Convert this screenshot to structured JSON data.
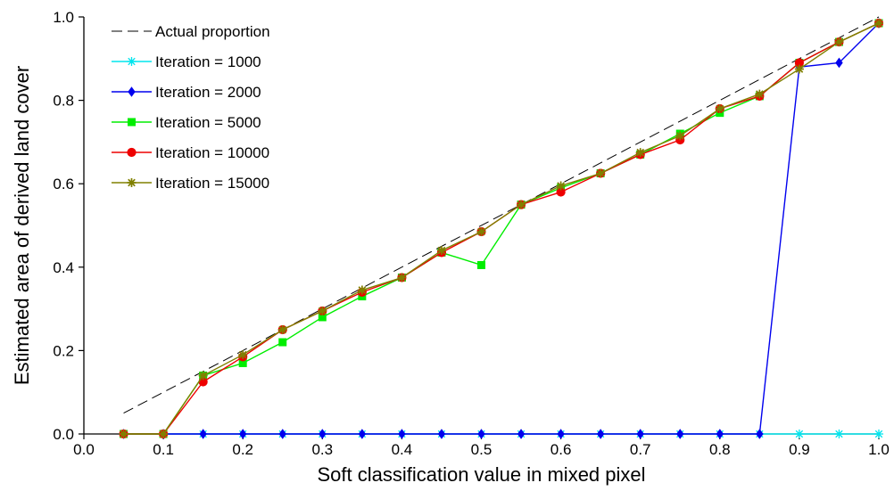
{
  "chart_data": {
    "type": "line",
    "xlabel": "Soft classification value in mixed pixel",
    "ylabel": "Estimated area of derived land cover",
    "xlim": [
      0.0,
      1.0
    ],
    "ylim": [
      0.0,
      1.0
    ],
    "x_ticks": [
      "0.0",
      "0.1",
      "0.2",
      "0.3",
      "0.4",
      "0.5",
      "0.6",
      "0.7",
      "0.8",
      "0.9",
      "1.0"
    ],
    "y_ticks": [
      "0.0",
      "0.2",
      "0.4",
      "0.6",
      "0.8",
      "1.0"
    ],
    "grid": false,
    "legend_position": "top-left",
    "series": [
      {
        "name": "Actual proportion",
        "color": "#000000",
        "style": "dashed",
        "marker": "none",
        "x": [
          0.05,
          1.0
        ],
        "y": [
          0.05,
          1.0
        ]
      },
      {
        "name": "Iteration = 1000",
        "color": "#00e5ee",
        "style": "solid",
        "marker": "star",
        "x": [
          0.05,
          0.1,
          0.15,
          0.2,
          0.25,
          0.3,
          0.35,
          0.4,
          0.45,
          0.5,
          0.55,
          0.6,
          0.65,
          0.7,
          0.75,
          0.8,
          0.85,
          0.9,
          0.95,
          1.0
        ],
        "y": [
          0,
          0,
          0,
          0,
          0,
          0,
          0,
          0,
          0,
          0,
          0,
          0,
          0,
          0,
          0,
          0,
          0,
          0,
          0,
          0
        ]
      },
      {
        "name": "Iteration = 2000",
        "color": "#0000ee",
        "style": "solid",
        "marker": "diamond",
        "x": [
          0.05,
          0.1,
          0.15,
          0.2,
          0.25,
          0.3,
          0.35,
          0.4,
          0.45,
          0.5,
          0.55,
          0.6,
          0.65,
          0.7,
          0.75,
          0.8,
          0.85,
          0.9,
          0.95,
          1.0
        ],
        "y": [
          0,
          0,
          0,
          0,
          0,
          0,
          0,
          0,
          0,
          0,
          0,
          0,
          0,
          0,
          0,
          0,
          0,
          0.88,
          0.89,
          0.985
        ]
      },
      {
        "name": "Iteration = 5000",
        "color": "#00ee00",
        "style": "solid",
        "marker": "square",
        "x": [
          0.05,
          0.1,
          0.15,
          0.2,
          0.25,
          0.3,
          0.35,
          0.4,
          0.45,
          0.5,
          0.55,
          0.6,
          0.65,
          0.7,
          0.75,
          0.8,
          0.85,
          0.9,
          0.95,
          1.0
        ],
        "y": [
          0,
          0,
          0.14,
          0.17,
          0.22,
          0.28,
          0.33,
          0.375,
          0.435,
          0.405,
          0.55,
          0.59,
          0.625,
          0.67,
          0.72,
          0.77,
          0.81,
          0.89,
          0.94,
          0.985
        ]
      },
      {
        "name": "Iteration = 10000",
        "color": "#ee0000",
        "style": "solid",
        "marker": "circle",
        "x": [
          0.05,
          0.1,
          0.15,
          0.2,
          0.25,
          0.3,
          0.35,
          0.4,
          0.45,
          0.5,
          0.55,
          0.6,
          0.65,
          0.7,
          0.75,
          0.8,
          0.85,
          0.9,
          0.95,
          1.0
        ],
        "y": [
          0,
          0,
          0.125,
          0.185,
          0.25,
          0.295,
          0.34,
          0.375,
          0.435,
          0.485,
          0.55,
          0.58,
          0.625,
          0.67,
          0.705,
          0.78,
          0.81,
          0.89,
          0.94,
          0.985
        ]
      },
      {
        "name": "Iteration = 15000",
        "color": "#808000",
        "style": "solid",
        "marker": "asterisk",
        "x": [
          0.05,
          0.1,
          0.15,
          0.2,
          0.25,
          0.3,
          0.35,
          0.4,
          0.45,
          0.5,
          0.55,
          0.6,
          0.65,
          0.7,
          0.75,
          0.8,
          0.85,
          0.9,
          0.95,
          1.0
        ],
        "y": [
          0,
          0,
          0.14,
          0.19,
          0.25,
          0.295,
          0.345,
          0.375,
          0.44,
          0.485,
          0.55,
          0.595,
          0.625,
          0.675,
          0.715,
          0.78,
          0.815,
          0.875,
          0.94,
          0.985
        ]
      }
    ]
  }
}
